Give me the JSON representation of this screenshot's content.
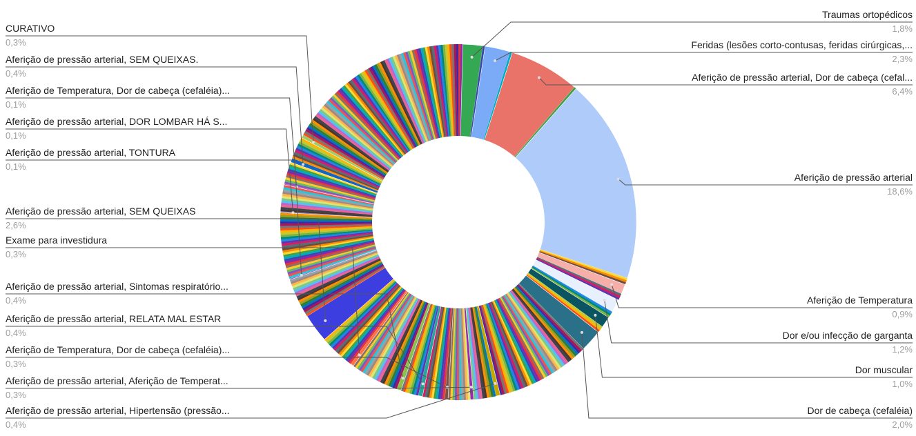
{
  "chart_data": {
    "type": "pie",
    "donut": true,
    "legend": "none",
    "labeled_slices": [
      {
        "label": "Traumas ortopédicos",
        "value": 1.8,
        "value_label": "1,8%",
        "color": "#34a853"
      },
      {
        "label": "Feridas (lesões corto-contusas, feridas cirúrgicas,...",
        "value": 2.3,
        "value_label": "2,3%",
        "color": "#7baaf7"
      },
      {
        "label": "Aferição de pressão arterial, Dor de cabeça (cefal...",
        "value": 6.4,
        "value_label": "6,4%",
        "color": "#ea7369"
      },
      {
        "label": "Aferição de pressão arterial",
        "value": 18.6,
        "value_label": "18,6%",
        "color": "#aecbfa"
      },
      {
        "label": "Aferição de Temperatura",
        "value": 0.9,
        "value_label": "0,9%",
        "color": "#f6aea9"
      },
      {
        "label": "Dor e/ou infecção de garganta",
        "value": 1.2,
        "value_label": "1,2%",
        "color": "#e8f0fe"
      },
      {
        "label": "Dor muscular",
        "value": 1.0,
        "value_label": "1,0%",
        "color": "#0b5563"
      },
      {
        "label": "Dor de cabeça (cefaléia)",
        "value": 2.0,
        "value_label": "2,0%",
        "color": "#2a7089"
      },
      {
        "label": "Aferição de pressão arterial, Hipertensão (pressão...",
        "value": 0.4,
        "value_label": "0,4%",
        "color": "#c6a700"
      },
      {
        "label": "Aferição de pressão arterial, Aferição de Temperat...",
        "value": 0.3,
        "value_label": "0,3%",
        "color": "#9c27b0"
      },
      {
        "label": "Aferição de Temperatura, Dor de cabeça (cefaléia)...",
        "value": 0.3,
        "value_label": "0,3%",
        "color": "#795548"
      },
      {
        "label": "Aferição de pressão arterial, RELATA MAL ESTAR",
        "value": 0.4,
        "value_label": "0,4%",
        "color": "#26a69a"
      },
      {
        "label": "Aferição de pressão arterial, Sintomas respiratório...",
        "value": 0.4,
        "value_label": "0,4%",
        "color": "#8bc34a"
      },
      {
        "label": "Exame para investidura",
        "value": 0.3,
        "value_label": "0,3%",
        "color": "#ff7043"
      },
      {
        "label": "Aferição de pressão arterial, SEM QUEIXAS",
        "value": 2.6,
        "value_label": "2,6%",
        "color": "#3c3ee0"
      },
      {
        "label": "Aferição de pressão arterial, TONTURA",
        "value": 0.1,
        "value_label": "0,1%",
        "color": "#ab47bc"
      },
      {
        "label": "Aferição de pressão arterial, DOR LOMBAR HÁ S...",
        "value": 0.1,
        "value_label": "0,1%",
        "color": "#5c6bc0"
      },
      {
        "label": "Aferição de Temperatura, Dor de cabeça (cefaléia)...",
        "value": 0.1,
        "value_label": "0,1%",
        "color": "#ec407a"
      },
      {
        "label": "Aferição de pressão arterial, SEM QUEIXAS.",
        "value": 0.4,
        "value_label": "0,4%",
        "color": "#1565c0"
      },
      {
        "label": "CURATIVO",
        "value": 0.3,
        "value_label": "0,3%",
        "color": "#9ccc65"
      }
    ],
    "unlabeled_colors": [
      "#e53935",
      "#8e24aa",
      "#3949ab",
      "#00acc1",
      "#43a047",
      "#fdd835",
      "#fb8c00",
      "#6d4c41",
      "#546e7a",
      "#d81b60",
      "#5e35b1",
      "#1e88e5",
      "#00897b",
      "#7cb342",
      "#c0ca33",
      "#ffb300",
      "#f4511e",
      "#757575",
      "#ad1457",
      "#4527a0",
      "#0277bd",
      "#2e7d32",
      "#9e9d24",
      "#ff8f00",
      "#4e342e",
      "#37474f",
      "#f06292",
      "#ba68c8",
      "#4fc3f7",
      "#81c784",
      "#dce775",
      "#ffb74d",
      "#a1887f",
      "#90a4ae",
      "#26c6da",
      "#ef5350",
      "#7e57c2",
      "#66bb6a",
      "#ffca28",
      "#8d6e63"
    ]
  }
}
